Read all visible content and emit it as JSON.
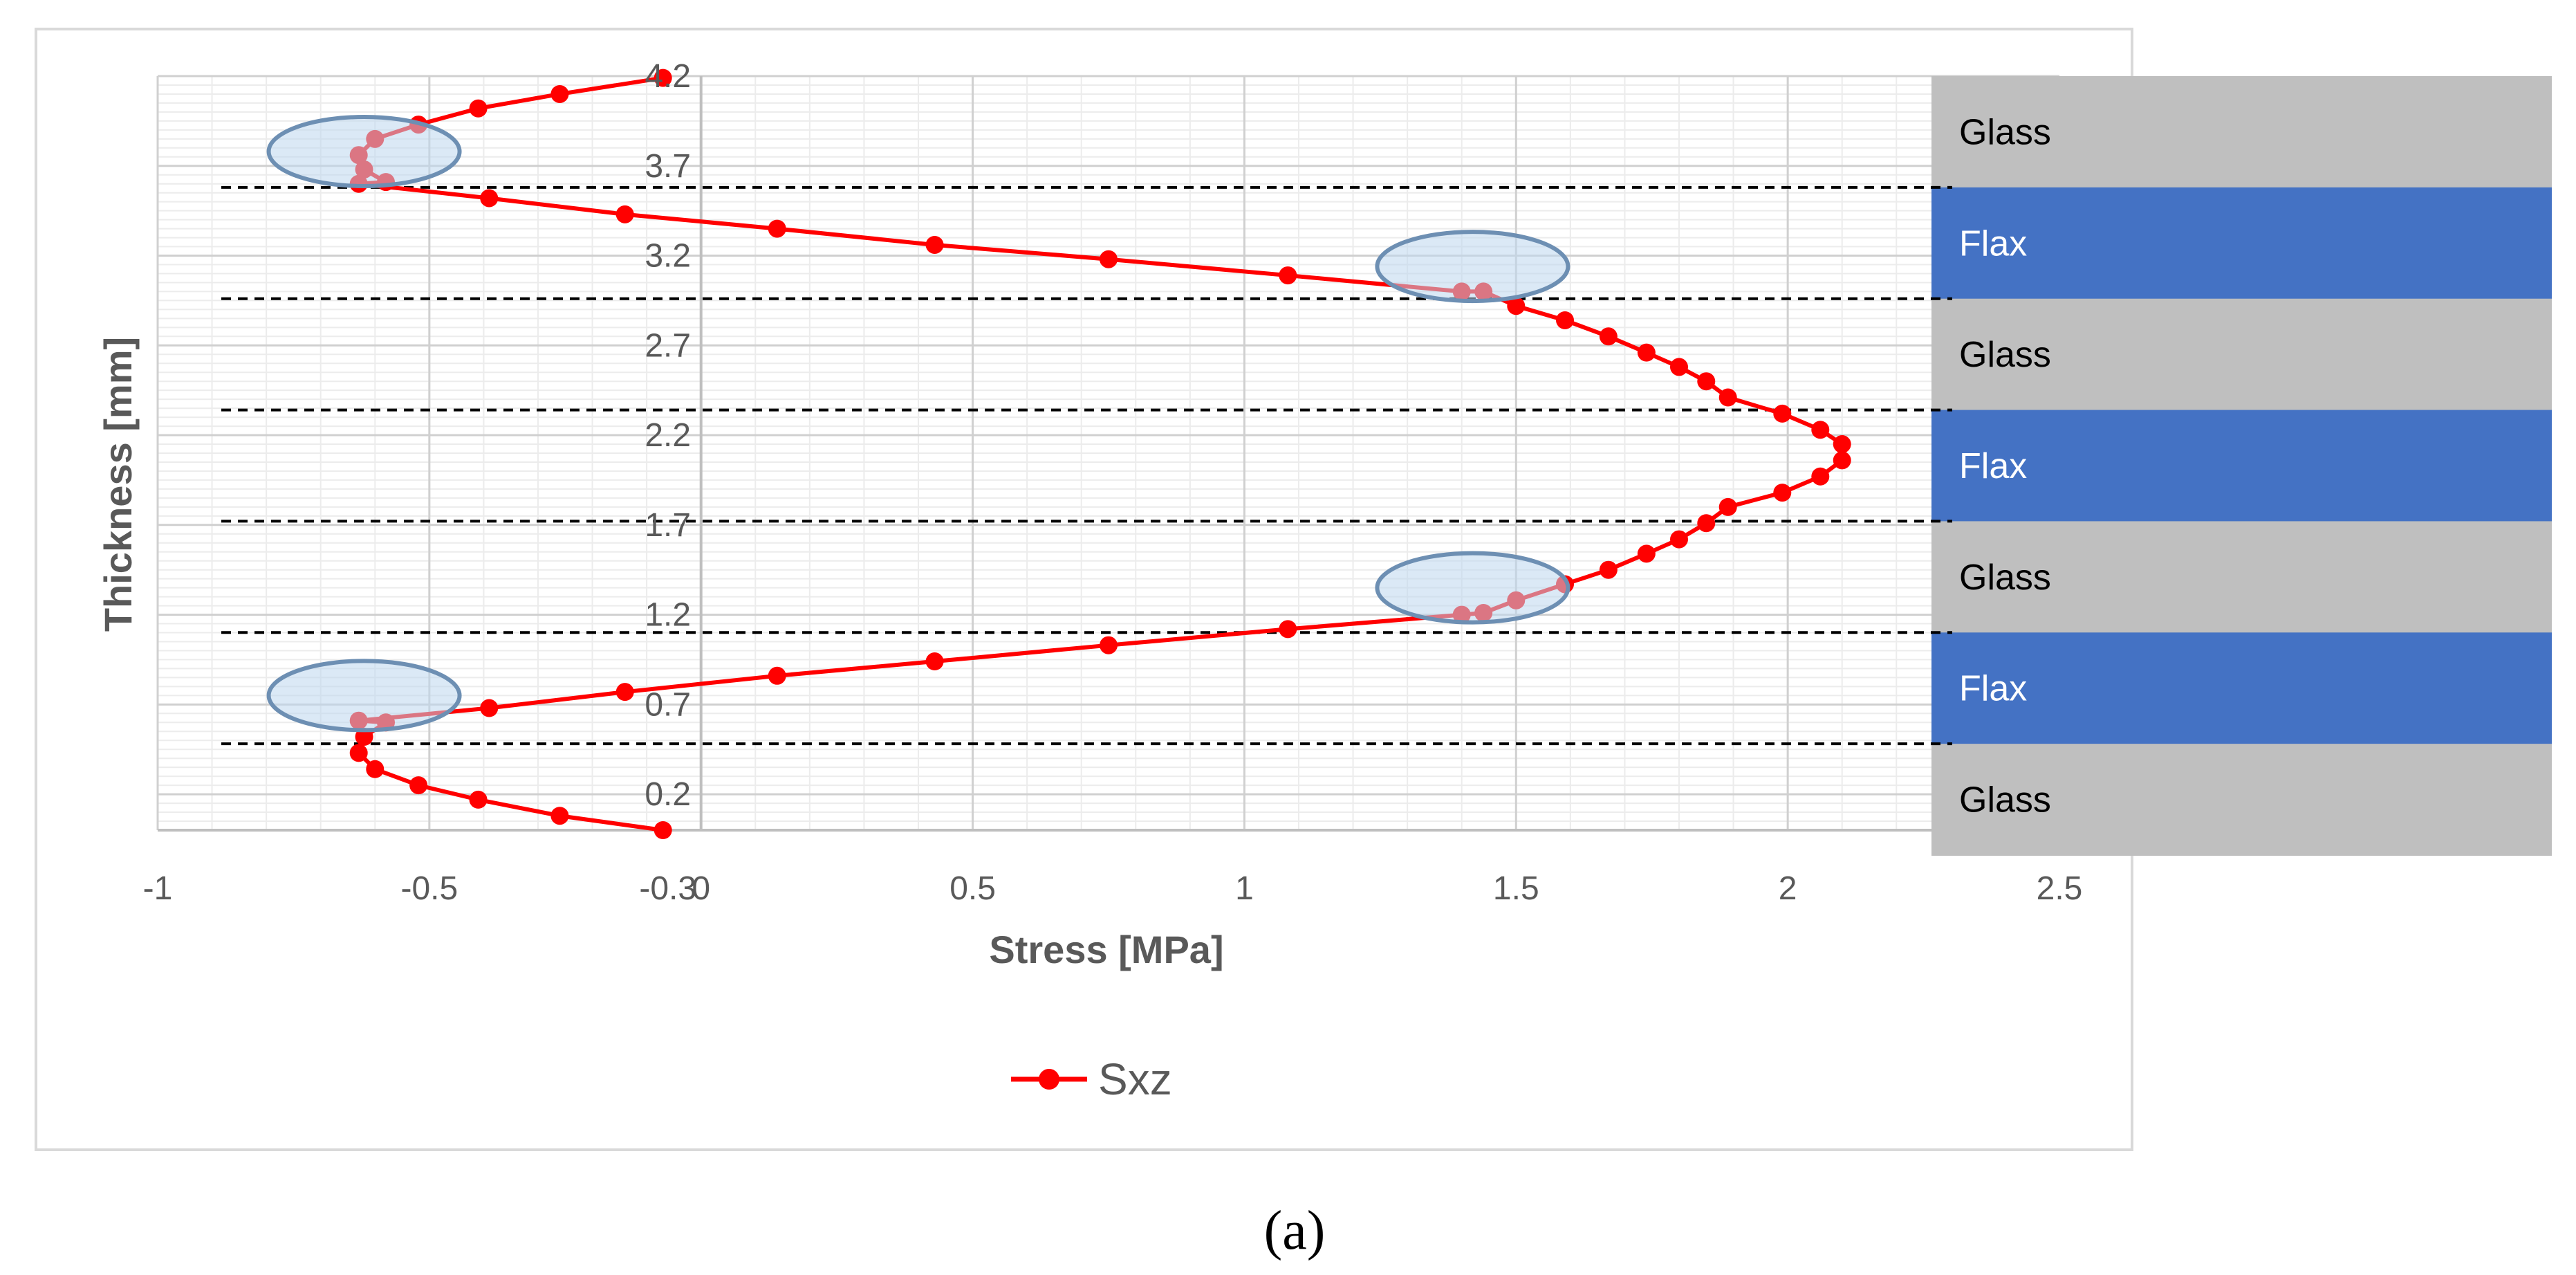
{
  "chart_data": {
    "type": "scatter",
    "xlabel": "Stress [MPa]",
    "ylabel": "Thickness [mm]",
    "xlim": [
      -1,
      2.5
    ],
    "ylim": [
      0,
      4.2
    ],
    "x_ticks": [
      "-1",
      "-0.5",
      "0",
      "0.5",
      "1",
      "1.5",
      "2",
      "2.5"
    ],
    "y_ticks": [
      "0.2",
      "0.7",
      "1.2",
      "1.7",
      "2.2",
      "2.7",
      "3.2",
      "3.7",
      "4.2"
    ],
    "x_extra_label": "-0.3",
    "grid": true,
    "legend_position": "bottom",
    "series": [
      {
        "name": "Sxz",
        "color": "#ff0000",
        "marker": "circle",
        "points": [
          [
            -0.07,
            0.0
          ],
          [
            -0.26,
            0.08
          ],
          [
            -0.41,
            0.17
          ],
          [
            -0.52,
            0.25
          ],
          [
            -0.6,
            0.34
          ],
          [
            -0.63,
            0.43
          ],
          [
            -0.62,
            0.52
          ],
          [
            -0.58,
            0.6
          ],
          [
            -0.63,
            0.61
          ],
          [
            -0.39,
            0.68
          ],
          [
            -0.14,
            0.77
          ],
          [
            0.14,
            0.86
          ],
          [
            0.43,
            0.94
          ],
          [
            0.75,
            1.03
          ],
          [
            1.08,
            1.12
          ],
          [
            1.4,
            1.2
          ],
          [
            1.44,
            1.21
          ],
          [
            1.5,
            1.28
          ],
          [
            1.59,
            1.37
          ],
          [
            1.67,
            1.45
          ],
          [
            1.74,
            1.54
          ],
          [
            1.8,
            1.62
          ],
          [
            1.85,
            1.71
          ],
          [
            1.89,
            1.8
          ],
          [
            1.99,
            1.88
          ],
          [
            2.06,
            1.97
          ],
          [
            2.1,
            2.06
          ],
          [
            2.1,
            2.15
          ],
          [
            2.06,
            2.23
          ],
          [
            1.99,
            2.32
          ],
          [
            1.89,
            2.41
          ],
          [
            1.85,
            2.5
          ],
          [
            1.8,
            2.58
          ],
          [
            1.74,
            2.66
          ],
          [
            1.67,
            2.75
          ],
          [
            1.59,
            2.84
          ],
          [
            1.5,
            2.92
          ],
          [
            1.44,
            3.0
          ],
          [
            1.4,
            3.0
          ],
          [
            1.08,
            3.09
          ],
          [
            0.75,
            3.18
          ],
          [
            0.43,
            3.26
          ],
          [
            0.14,
            3.35
          ],
          [
            -0.14,
            3.43
          ],
          [
            -0.39,
            3.52
          ],
          [
            -0.63,
            3.6
          ],
          [
            -0.58,
            3.61
          ],
          [
            -0.62,
            3.68
          ],
          [
            -0.63,
            3.76
          ],
          [
            -0.6,
            3.85
          ],
          [
            -0.52,
            3.93
          ],
          [
            -0.41,
            4.02
          ],
          [
            -0.26,
            4.1
          ],
          [
            -0.07,
            4.19
          ]
        ]
      }
    ],
    "layers": [
      {
        "label": "Glass",
        "color": "#bfbfbf",
        "text_color": "#000000"
      },
      {
        "label": "Flax",
        "color": "#4472c4",
        "text_color": "#ffffff"
      },
      {
        "label": "Glass",
        "color": "#bfbfbf",
        "text_color": "#000000"
      },
      {
        "label": "Flax",
        "color": "#4472c4",
        "text_color": "#ffffff"
      },
      {
        "label": "Glass",
        "color": "#bfbfbf",
        "text_color": "#000000"
      },
      {
        "label": "Flax",
        "color": "#4472c4",
        "text_color": "#ffffff"
      },
      {
        "label": "Glass",
        "color": "#bfbfbf",
        "text_color": "#000000"
      }
    ],
    "highlight_color": "#bdd7ee",
    "highlight_border": "#6d8fb3",
    "highlights": [
      {
        "x": -0.62,
        "y": 3.78
      },
      {
        "x": 1.42,
        "y": 3.14
      },
      {
        "x": 1.42,
        "y": 1.35
      },
      {
        "x": -0.62,
        "y": 0.75
      }
    ]
  },
  "caption": "(a)"
}
